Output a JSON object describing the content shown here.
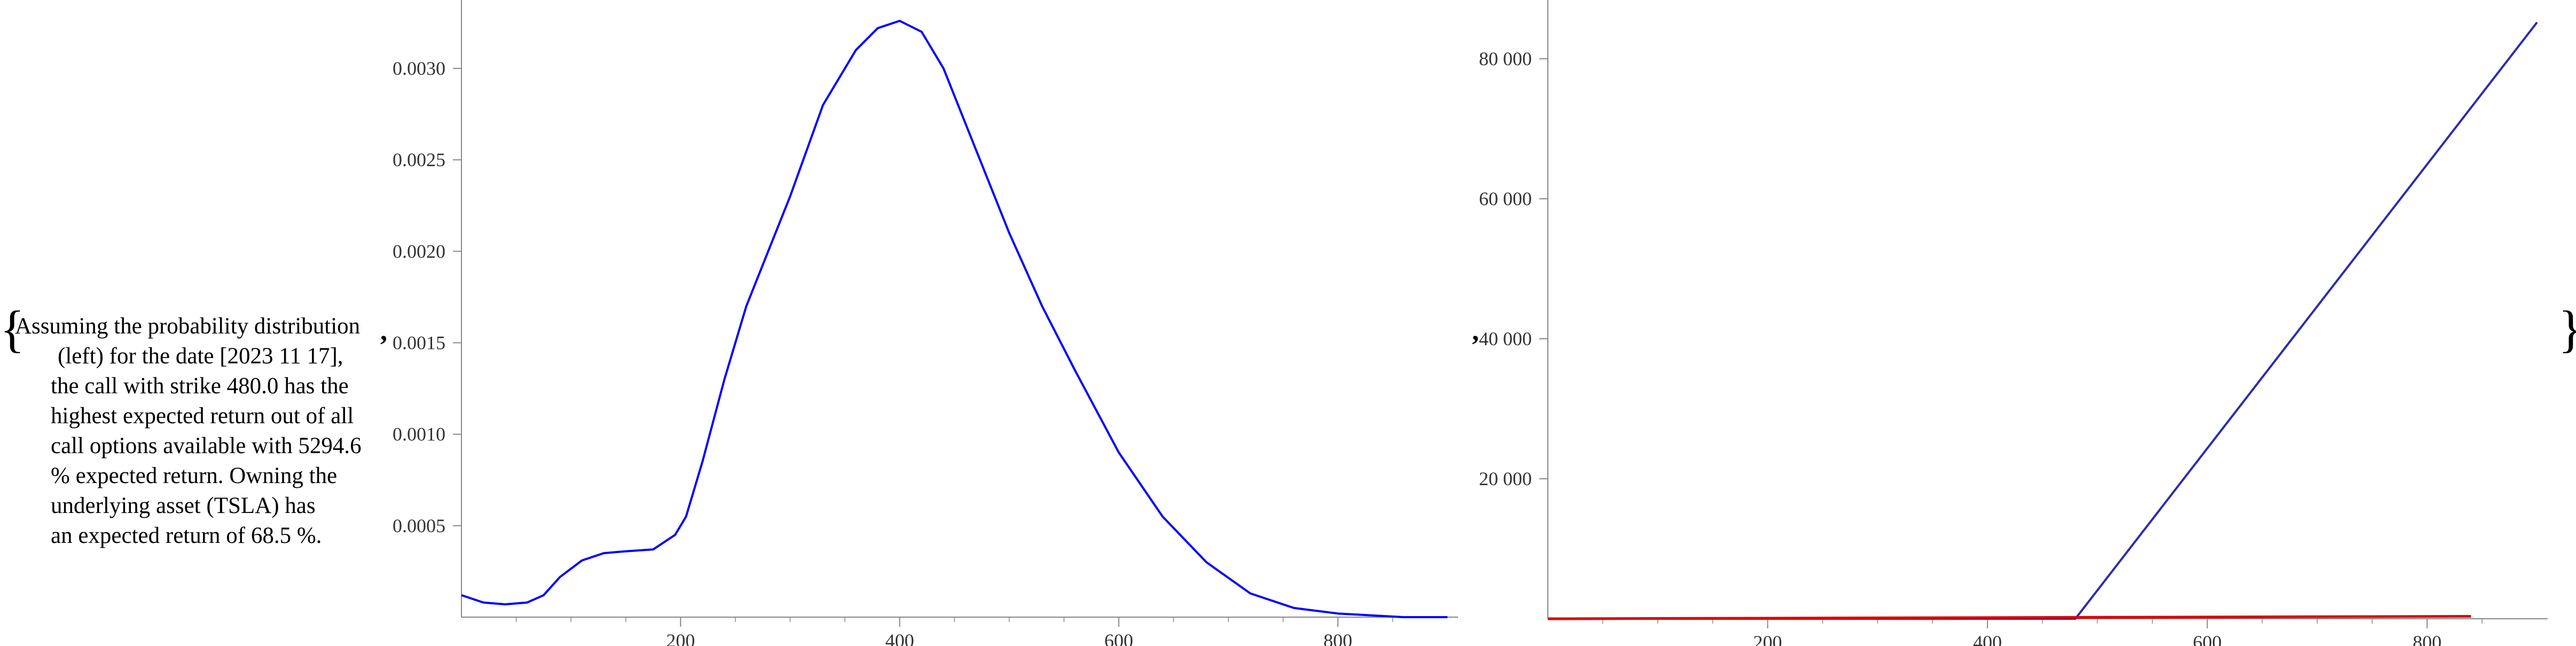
{
  "brace_open": "{",
  "brace_close": "}",
  "separator": ",",
  "description_lines": [
    "Assuming the probability distribution",
    "(left) for the date [2023 11 17],",
    "the call with strike 480.0 has the",
    "highest expected return out of all",
    "call options available with 5294.6",
    "% expected return. Owning the",
    "underlying asset (TSLA) has",
    "an expected return of 68.5 %."
  ],
  "chart_data": [
    {
      "type": "line",
      "title": "",
      "xlabel": "",
      "ylabel": "",
      "xlim": [
        0,
        900
      ],
      "ylim": [
        0,
        0.0033
      ],
      "x_ticks": [
        200,
        400,
        600,
        800
      ],
      "x_tick_labels": [
        "200",
        "400",
        "600",
        "800"
      ],
      "y_ticks": [
        0.0005,
        0.001,
        0.0015,
        0.002,
        0.0025,
        0.003
      ],
      "y_tick_labels": [
        "0.0005",
        "0.0010",
        "0.0015",
        "0.0020",
        "0.0025",
        "0.0030"
      ],
      "grid": false,
      "series": [
        {
          "color": "#0000ff",
          "x": [
            0,
            20,
            40,
            60,
            75,
            90,
            110,
            130,
            150,
            175,
            195,
            205,
            220,
            240,
            260,
            280,
            300,
            330,
            360,
            380,
            400,
            420,
            440,
            460,
            480,
            500,
            530,
            560,
            600,
            640,
            680,
            720,
            760,
            800,
            830,
            860,
            900
          ],
          "y": [
            0.00012,
            8e-05,
            7e-05,
            8e-05,
            0.00012,
            0.00022,
            0.00031,
            0.00035,
            0.00036,
            0.00037,
            0.00045,
            0.00055,
            0.00085,
            0.0013,
            0.0017,
            0.002,
            0.0023,
            0.0028,
            0.0031,
            0.00322,
            0.00326,
            0.0032,
            0.003,
            0.0027,
            0.0024,
            0.0021,
            0.0017,
            0.00135,
            0.0009,
            0.00055,
            0.0003,
            0.00013,
            5e-05,
            2e-05,
            1e-05,
            0.0,
            0.0
          ]
        }
      ]
    },
    {
      "type": "line",
      "title": "",
      "xlabel": "",
      "ylabel": "",
      "xlim": [
        0,
        900
      ],
      "ylim": [
        0,
        88000
      ],
      "x_ticks": [
        200,
        400,
        600,
        800
      ],
      "x_tick_labels": [
        "200",
        "400",
        "600",
        "800"
      ],
      "y_ticks": [
        20000,
        40000,
        60000,
        80000
      ],
      "y_tick_labels": [
        "20 000",
        "40 000",
        "60 000",
        "80 000"
      ],
      "grid": false,
      "series": [
        {
          "color": "#2b2bb0",
          "x": [
            0,
            480,
            900
          ],
          "y": [
            0,
            0,
            85200
          ]
        },
        {
          "color": "#dd0000",
          "x": [
            0,
            840
          ],
          "y": [
            0,
            340
          ]
        }
      ]
    }
  ]
}
